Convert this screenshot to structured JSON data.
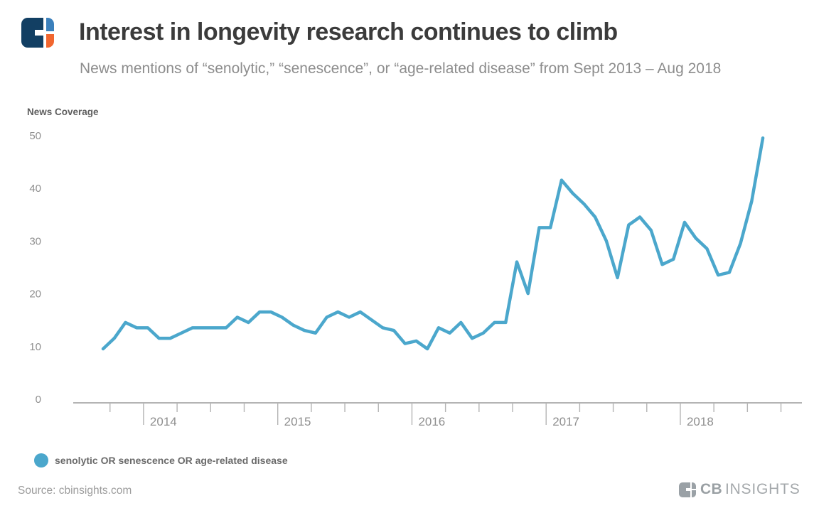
{
  "header": {
    "title": "Interest in longevity research continues to climb",
    "subtitle": "News mentions of “senolytic,” “senescence”, or “age-related disease” from Sept 2013 – Aug 2018"
  },
  "chart_data": {
    "type": "line",
    "ylabel": "News Coverage",
    "ylim": [
      0,
      50
    ],
    "y_ticks": [
      50,
      40,
      30,
      20,
      10,
      0
    ],
    "x_start": "Sep 2013",
    "x_end": "Aug 2018",
    "x_interval": "monthly",
    "x_year_ticks": [
      "2014",
      "2015",
      "2016",
      "2017",
      "2018"
    ],
    "grid": "off",
    "legend_position": "bottom-left",
    "axis_color": "#b4b4b4",
    "series": [
      {
        "name": "senolytic OR senescence OR age-related disease",
        "color": "#4BA7CC",
        "values": [
          9.5,
          11.5,
          14.5,
          13.5,
          13.5,
          11.5,
          11.5,
          12.5,
          13.5,
          13.5,
          13.5,
          13.5,
          15.5,
          14.5,
          16.5,
          16.5,
          15.5,
          14,
          13,
          12.5,
          15.5,
          16.5,
          15.5,
          16.5,
          15,
          13.5,
          13,
          10.5,
          11,
          9.5,
          13.5,
          12.5,
          14.5,
          11.5,
          12.5,
          14.5,
          14.5,
          26,
          20,
          32.5,
          32.5,
          41.5,
          39,
          37,
          34.5,
          30,
          23,
          33,
          34.5,
          32,
          25.5,
          26.5,
          33.5,
          30.5,
          28.5,
          23.5,
          24,
          29.5,
          37.5,
          49.5
        ]
      }
    ]
  },
  "legend": {
    "label": "senolytic OR senescence OR age-related disease",
    "dot_color": "#4BA7CC"
  },
  "footer": {
    "source": "Source: cbinsights.com",
    "brand_cb": "CB",
    "brand_insights": "INSIGHTS"
  }
}
